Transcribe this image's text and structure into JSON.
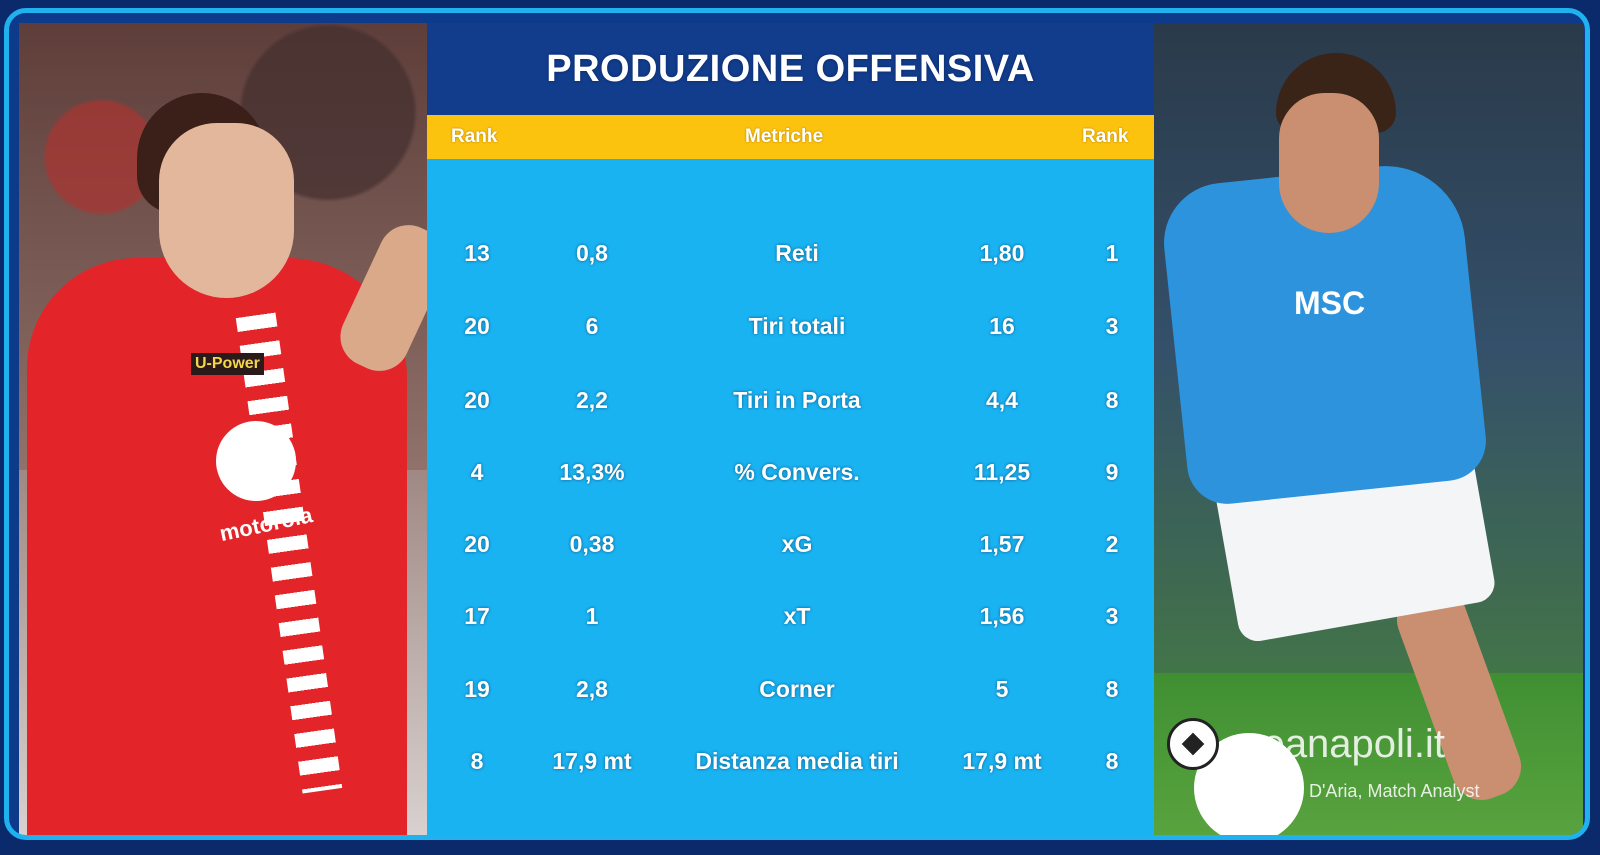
{
  "title": "PRODUZIONE OFFENSIVA",
  "headers": {
    "left_rank": "Rank",
    "metric": "Metriche",
    "right_rank": "Rank"
  },
  "rows": [
    {
      "left_rank": "13",
      "left_value": "0,8",
      "metric": "Reti",
      "right_value": "1,80",
      "right_rank": "1"
    },
    {
      "left_rank": "20",
      "left_value": "6",
      "metric": "Tiri totali",
      "right_value": "16",
      "right_rank": "3"
    },
    {
      "left_rank": "20",
      "left_value": "2,2",
      "metric": "Tiri in Porta",
      "right_value": "4,4",
      "right_rank": "8"
    },
    {
      "left_rank": "4",
      "left_value": "13,3%",
      "metric": "% Convers.",
      "right_value": "11,25",
      "right_rank": "9"
    },
    {
      "left_rank": "20",
      "left_value": "0,38",
      "metric": "xG",
      "right_value": "1,57",
      "right_rank": "2"
    },
    {
      "left_rank": "17",
      "left_value": "1",
      "metric": "xT",
      "right_value": "1,56",
      "right_rank": "3"
    },
    {
      "left_rank": "19",
      "left_value": "2,8",
      "metric": "Corner",
      "right_value": "5",
      "right_rank": "8"
    },
    {
      "left_rank": "8",
      "left_value": "17,9 mt",
      "metric": "Distanza media tiri",
      "right_value": "17,9 mt",
      "right_rank": "8"
    }
  ],
  "left_photo": {
    "sponsor": "motorola",
    "kit_sponsor": "U-Power"
  },
  "right_photo": {
    "sponsor": "MSC"
  },
  "watermark": {
    "site": "areanapoli.it",
    "credit": "D'Aria, Match Analyst"
  },
  "colors": {
    "frame": "#1fb2ee",
    "title_bar": "#123d8c",
    "header_bar": "#fcc30e",
    "table_bg": "#1ab3f2",
    "left_kit": "#e3252a",
    "right_kit": "#2d93dc"
  }
}
